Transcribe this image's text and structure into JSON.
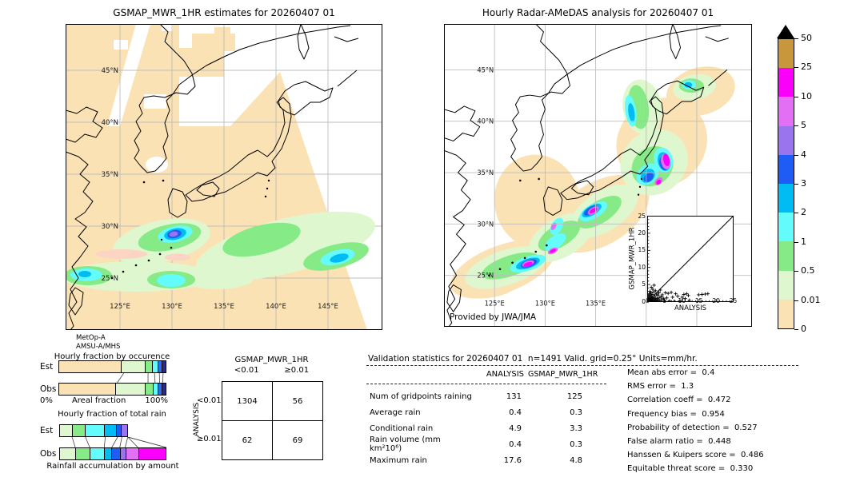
{
  "left_panel": {
    "title": "GSMAP_MWR_1HR estimates for 20260407 01",
    "lat_labels": [
      "45°N",
      "40°N",
      "35°N",
      "30°N",
      "25°N"
    ],
    "lon_labels": [
      "125°E",
      "130°E",
      "135°E",
      "140°E",
      "145°E"
    ],
    "source_line1": "MetOp-A",
    "source_line2": "AMSU-A/MHS"
  },
  "right_panel": {
    "title": "Hourly Radar-AMeDAS analysis for 20260407 01",
    "lat_labels": [
      "45°N",
      "40°N",
      "35°N",
      "30°N",
      "25°N"
    ],
    "lon_labels": [
      "125°E",
      "130°E",
      "135°E"
    ],
    "credit": "Provided by JWA/JMA"
  },
  "chart_data": [
    {
      "id": "colorbar",
      "type": "heatmap",
      "units": "mm/hr",
      "labels_top_to_bottom": [
        "50",
        "25",
        "10",
        "5",
        "4",
        "3",
        "2",
        "1",
        "0.5",
        "0.01",
        "0"
      ],
      "colors_top_to_bottom": [
        "#c9973b",
        "#fa00fa",
        "#e36ff5",
        "#9a74ef",
        "#1e5cf5",
        "#00bcf2",
        "#63fbfb",
        "#86ea86",
        "#dff7cf",
        "#fbe2b4"
      ],
      "overflow_color": "#000000"
    },
    {
      "id": "occurrence",
      "type": "bar",
      "stacked": true,
      "title": "Hourly fraction by occurence",
      "row_labels": [
        "Est",
        "Obs"
      ],
      "axis_left": "0%",
      "axis_mid": "Areal fraction",
      "axis_right": "100%",
      "classes": [
        "0-0.01",
        "0.01-0.5",
        "0.5-1",
        "1-2",
        "2-3",
        ">3"
      ],
      "colors": [
        "#fbe2b4",
        "#dff7cf",
        "#86ea86",
        "#63fbfb",
        "#2e6ef0",
        "#2b2b8c"
      ],
      "est": [
        60.5,
        22.5,
        6,
        4.5,
        3.5,
        3
      ],
      "obs": [
        54.5,
        28.5,
        6.5,
        4.2,
        2.8,
        3.5
      ]
    },
    {
      "id": "totalrain",
      "type": "bar",
      "stacked": true,
      "title": "Hourly fraction of total rain",
      "caption": "Rainfall accumulation by amount",
      "row_labels": [
        "Est",
        "Obs"
      ],
      "classes": [
        "0.01-0.5",
        "0.5-1",
        "1-2",
        "2-3",
        "3-4",
        "4-5",
        "5-10",
        "10-25"
      ],
      "colors": [
        "#dff7cf",
        "#86ea86",
        "#63fbfb",
        "#00bcf2",
        "#1e5cf5",
        "#9a74ef",
        "#e36ff5",
        "#fa00fa"
      ],
      "est": [
        12,
        12.5,
        18.5,
        11.5,
        4,
        5.5,
        0,
        0
      ],
      "obs": [
        15,
        13.5,
        13.5,
        7,
        7.5,
        5,
        12,
        26.5
      ]
    },
    {
      "id": "contingency",
      "type": "table",
      "col_title": "GSMAP_MWR_1HR",
      "row_title": "ANALYSIS",
      "col_labels": [
        "<0.01",
        "≥0.01"
      ],
      "row_labels": [
        "<0.01",
        "≥0.01"
      ],
      "values": [
        [
          "1304",
          "56"
        ],
        [
          "62",
          "69"
        ]
      ]
    },
    {
      "id": "validation",
      "type": "table",
      "title": "Validation statistics for 20260407 01  n=1491 Valid. grid=0.25° Units=mm/hr.",
      "columns": [
        "ANALYSIS",
        "GSMAP_MWR_1HR"
      ],
      "rows": [
        [
          "Num of gridpoints raining",
          "131",
          "125"
        ],
        [
          "Average rain",
          "0.4",
          "0.3"
        ],
        [
          "Conditional rain",
          "4.9",
          "3.3"
        ],
        [
          "Rain volume (mm km²10⁶)",
          "0.4",
          "0.3"
        ],
        [
          "Maximum rain",
          "17.6",
          "4.8"
        ]
      ]
    },
    {
      "id": "scores",
      "type": "list",
      "items": [
        [
          "Mean abs error",
          "0.4"
        ],
        [
          "RMS error",
          "1.3"
        ],
        [
          "Correlation coeff",
          "0.472"
        ],
        [
          "Frequency bias",
          "0.954"
        ],
        [
          "Probability of detection",
          "0.527"
        ],
        [
          "False alarm ratio",
          "0.448"
        ],
        [
          "Hanssen & Kuipers score",
          "0.486"
        ],
        [
          "Equitable threat score",
          "0.330"
        ]
      ]
    },
    {
      "id": "scatter",
      "type": "scatter",
      "xlabel": "ANALYSIS",
      "ylabel": "GSMAP_MWR_1HR",
      "xlim": [
        0,
        25
      ],
      "ylim": [
        0,
        25
      ],
      "ticks": [
        "0",
        "5",
        "10",
        "15",
        "20",
        "25"
      ],
      "points": [
        [
          0.1,
          0.1
        ],
        [
          0.15,
          0.5
        ],
        [
          0.2,
          1.0
        ],
        [
          0.2,
          0.2
        ],
        [
          0.3,
          0.3
        ],
        [
          0.3,
          1.8
        ],
        [
          0.4,
          0.1
        ],
        [
          0.4,
          0.9
        ],
        [
          0.5,
          0.4
        ],
        [
          0.5,
          2.3
        ],
        [
          0.6,
          1.4
        ],
        [
          0.6,
          0.2
        ],
        [
          0.7,
          0.7
        ],
        [
          0.7,
          3.0
        ],
        [
          0.8,
          0.3
        ],
        [
          0.8,
          1.9
        ],
        [
          0.9,
          1.1
        ],
        [
          1.0,
          0.2
        ],
        [
          1.0,
          2.6
        ],
        [
          1.1,
          0.6
        ],
        [
          1.1,
          4.2
        ],
        [
          1.2,
          1.5
        ],
        [
          1.3,
          0.3
        ],
        [
          1.3,
          2.1
        ],
        [
          1.4,
          0.9
        ],
        [
          1.5,
          3.6
        ],
        [
          1.5,
          0.1
        ],
        [
          1.6,
          1.2
        ],
        [
          1.7,
          0.5
        ],
        [
          1.8,
          2.8
        ],
        [
          1.9,
          4.8
        ],
        [
          2.0,
          0.8
        ],
        [
          2.1,
          1.7
        ],
        [
          2.2,
          0.2
        ],
        [
          2.3,
          3.2
        ],
        [
          2.4,
          1.0
        ],
        [
          2.5,
          0.4
        ],
        [
          2.6,
          2.2
        ],
        [
          2.8,
          0.9
        ],
        [
          2.9,
          0.1
        ],
        [
          3.0,
          1.9
        ],
        [
          3.1,
          0.5
        ],
        [
          3.3,
          2.6
        ],
        [
          3.4,
          1.1
        ],
        [
          3.6,
          0.2
        ],
        [
          3.7,
          3.4
        ],
        [
          3.9,
          1.4
        ],
        [
          4.1,
          0.6
        ],
        [
          4.3,
          2.0
        ],
        [
          4.6,
          1.0
        ],
        [
          4.9,
          0.3
        ],
        [
          5.2,
          2.6
        ],
        [
          5.6,
          1.1
        ],
        [
          6.0,
          2.4
        ],
        [
          6.4,
          0.2
        ],
        [
          6.9,
          2.7
        ],
        [
          7.3,
          1.3
        ],
        [
          7.8,
          0.1
        ],
        [
          8.2,
          2.3
        ],
        [
          8.8,
          1.6
        ],
        [
          9.4,
          0.2
        ],
        [
          10.1,
          1.3
        ],
        [
          10.6,
          2.1
        ],
        [
          11.0,
          0.9
        ],
        [
          11.4,
          2.3
        ],
        [
          11.9,
          1.8
        ],
        [
          12.2,
          0.4
        ],
        [
          14.9,
          2.0
        ],
        [
          15.9,
          2.1
        ],
        [
          16.8,
          2.2
        ],
        [
          17.6,
          2.3
        ]
      ]
    }
  ]
}
